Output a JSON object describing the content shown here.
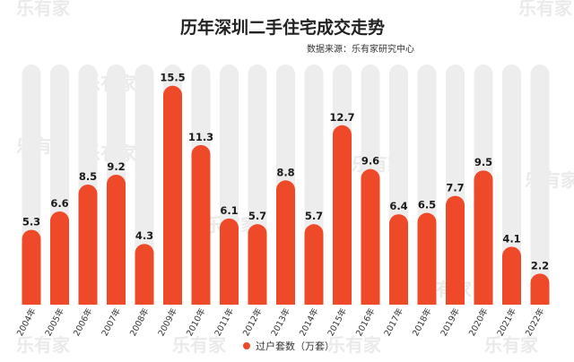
{
  "watermark": "乐有家",
  "chart_data": {
    "type": "bar",
    "title": "历年深圳二手住宅成交走势",
    "source": "数据来源：乐有家研究中心",
    "categories": [
      "2004年",
      "2005年",
      "2006年",
      "2007年",
      "2008年",
      "2009年",
      "2010年",
      "2011年",
      "2012年",
      "2013年",
      "2014年",
      "2015年",
      "2016年",
      "2017年",
      "2018年",
      "2019年",
      "2020年",
      "2021年",
      "2022年"
    ],
    "series": [
      {
        "name": "过户套数（万套）",
        "values": [
          5.3,
          6.6,
          8.5,
          9.2,
          4.3,
          15.5,
          11.3,
          6.1,
          5.7,
          8.8,
          5.7,
          12.7,
          9.6,
          6.4,
          6.5,
          7.7,
          9.5,
          4.1,
          2.2
        ]
      }
    ],
    "ylim": [
      0,
      17
    ],
    "legend_position": "bottom",
    "colors": {
      "bar": "#EE4A2A",
      "track": "#EDEDED"
    }
  }
}
